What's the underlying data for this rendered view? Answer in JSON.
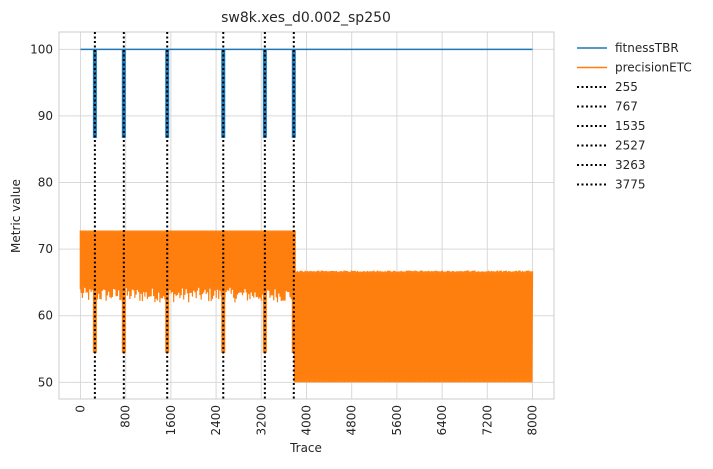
{
  "chart_data": {
    "type": "line",
    "title": "sw8k.xes_d0.002_sp250",
    "xlabel": "Trace",
    "ylabel": "Metric value",
    "xlim": [
      -380,
      8380
    ],
    "ylim": [
      47.5,
      102.6
    ],
    "x_ticks": [
      0,
      800,
      1600,
      2400,
      3200,
      4000,
      4800,
      5600,
      6400,
      7200,
      8000
    ],
    "y_ticks": [
      50,
      60,
      70,
      80,
      90,
      100
    ],
    "grid": true,
    "legend_position": "outside-right",
    "series": [
      {
        "name": "fitnessTBR",
        "color": "#1f77b4",
        "baseline": 100,
        "x_range": [
          0,
          8000
        ],
        "dips": [
          {
            "x": 255,
            "min": 86.7
          },
          {
            "x": 767,
            "min": 86.7
          },
          {
            "x": 1535,
            "min": 86.7
          },
          {
            "x": 2527,
            "min": 86.7
          },
          {
            "x": 3263,
            "min": 86.7
          },
          {
            "x": 3775,
            "min": 86.7
          }
        ]
      },
      {
        "name": "precisionETC",
        "color": "#ff7f0e",
        "segments": [
          {
            "x_range": [
              0,
              3775
            ],
            "high": 72.8,
            "low": 62.0
          },
          {
            "x_range": [
              3775,
              8000
            ],
            "high": 66.8,
            "low": 50.0
          }
        ],
        "dips": [
          {
            "x": 255,
            "min": 54.4
          },
          {
            "x": 767,
            "min": 54.4
          },
          {
            "x": 1535,
            "min": 54.4
          },
          {
            "x": 2527,
            "min": 54.4
          },
          {
            "x": 3263,
            "min": 54.4
          },
          {
            "x": 3775,
            "min": 54.4
          }
        ]
      }
    ],
    "vlines": [
      {
        "x": 255,
        "label": "255",
        "color": "#000000",
        "style": "dotted"
      },
      {
        "x": 767,
        "label": "767",
        "color": "#000000",
        "style": "dotted"
      },
      {
        "x": 1535,
        "label": "1535",
        "color": "#000000",
        "style": "dotted"
      },
      {
        "x": 2527,
        "label": "2527",
        "color": "#000000",
        "style": "dotted"
      },
      {
        "x": 3263,
        "label": "3263",
        "color": "#000000",
        "style": "dotted"
      },
      {
        "x": 3775,
        "label": "3775",
        "color": "#000000",
        "style": "dotted"
      }
    ]
  }
}
